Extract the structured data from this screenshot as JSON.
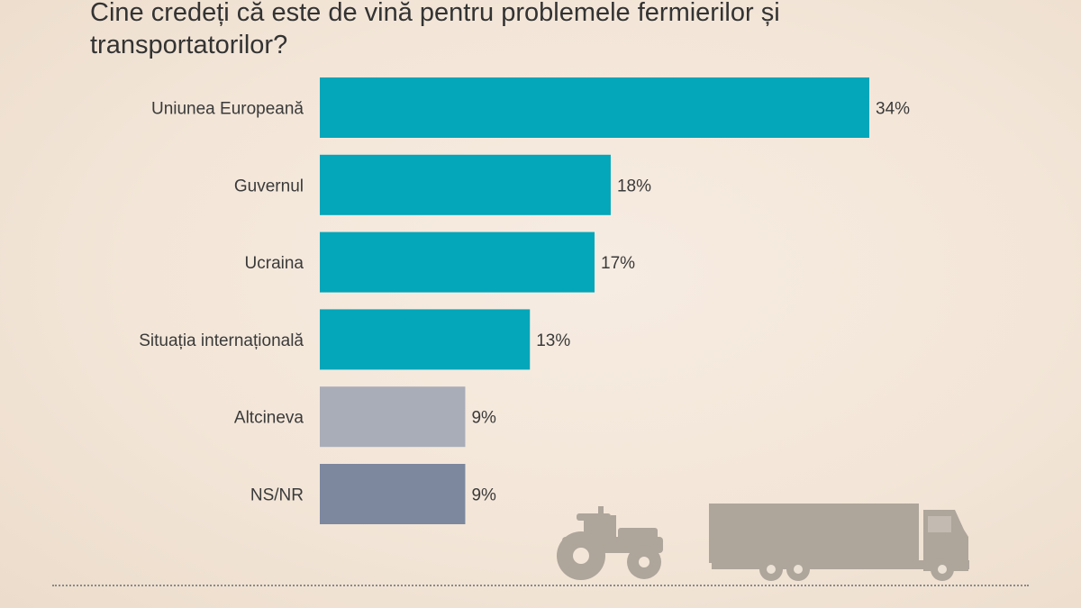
{
  "chart_data": {
    "type": "bar",
    "orientation": "horizontal",
    "title": "Cine credeți că este de vină pentru problemele fermierilor și transportatorilor?",
    "categories": [
      "Uniunea Europeană",
      "Guvernul",
      "Ucraina",
      "Situația internațională",
      "Altcineva",
      "NS/NR"
    ],
    "values": [
      34,
      18,
      17,
      13,
      9,
      9
    ],
    "value_labels": [
      "34%",
      "18%",
      "17%",
      "13%",
      "9%",
      "9%"
    ],
    "bar_colors": [
      "#04a6b9",
      "#04a6b9",
      "#04a6b9",
      "#04a6b9",
      "#a9adb8",
      "#7d889f"
    ],
    "xlim": [
      0,
      34
    ],
    "grid": false,
    "legend": "none"
  },
  "decor": {
    "icons": [
      "tractor-icon",
      "truck-icon"
    ],
    "icon_color": "#aea59b"
  }
}
